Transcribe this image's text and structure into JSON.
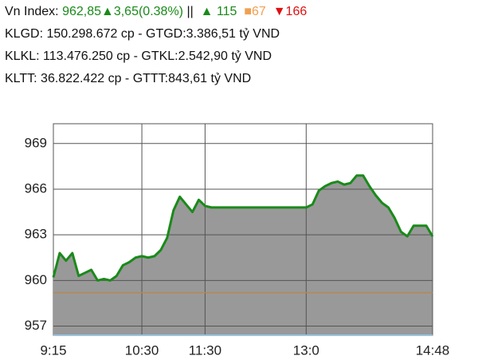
{
  "header": {
    "index_label": "Vn Index:",
    "index_value": "962,85▲3,65(0.38%)",
    "separator": "||",
    "advances": "▲ 115",
    "unchanged": "■67",
    "declines": "▼166",
    "lines": [
      "KLGD: 150.298.672 cp - GTGD:3.386,51 tỷ VND",
      "KLKL: 113.476.250 cp - GTKL:2.542,90 tỷ VND",
      "KLTT: 36.822.422 cp - GTTT:843,61 tỷ VND"
    ]
  },
  "chart_data": {
    "type": "area",
    "categories": [
      "9:15",
      null,
      null,
      null,
      null,
      null,
      null,
      null,
      null,
      null,
      null,
      null,
      null,
      null,
      "10:30",
      null,
      null,
      null,
      null,
      null,
      null,
      null,
      null,
      null,
      "11:30",
      null,
      null,
      null,
      null,
      null,
      null,
      null,
      null,
      null,
      null,
      null,
      null,
      null,
      null,
      null,
      "13:0",
      null,
      null,
      null,
      null,
      null,
      null,
      null,
      null,
      null,
      null,
      null,
      null,
      null,
      null,
      null,
      null,
      null,
      null,
      null,
      "14:48"
    ],
    "series": [
      {
        "color": "#1a8a1a",
        "fill": "#999999",
        "values": [
          960.2,
          961.8,
          961.3,
          961.8,
          960.3,
          960.5,
          960.7,
          960.0,
          960.1,
          960.0,
          960.3,
          961.0,
          961.2,
          961.5,
          961.6,
          961.5,
          961.6,
          962.0,
          962.8,
          964.6,
          965.5,
          965.0,
          964.5,
          965.3,
          964.9,
          964.8,
          964.8,
          964.8,
          964.8,
          964.8,
          964.8,
          964.8,
          964.8,
          964.8,
          964.8,
          964.8,
          964.8,
          964.8,
          964.8,
          964.8,
          964.8,
          965.0,
          965.9,
          966.2,
          966.4,
          966.5,
          966.3,
          966.4,
          966.9,
          966.9,
          966.2,
          965.6,
          965.1,
          964.8,
          964.1,
          963.2,
          962.9,
          963.6,
          963.6,
          963.6,
          962.9
        ]
      }
    ],
    "reference_line": {
      "value": 959.2,
      "color": "#b5894f"
    },
    "ylim": [
      956.4,
      970.3
    ],
    "yticks": [
      957,
      960,
      963,
      966,
      969
    ],
    "grid": true
  }
}
